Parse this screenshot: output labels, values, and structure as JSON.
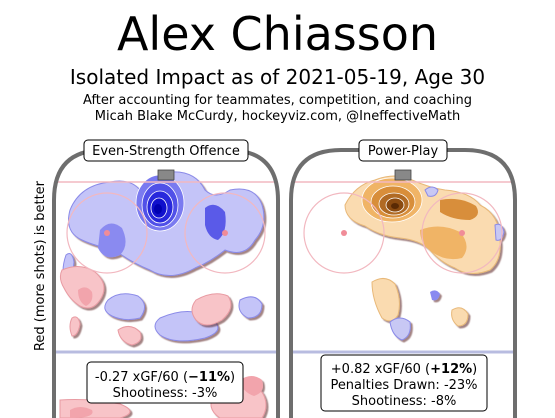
{
  "header": {
    "title": "Alex Chiasson",
    "subtitle": "Isolated Impact as of 2021-05-19, Age 30",
    "note_line1": "After accounting for teammates, competition, and coaching",
    "note_line2": "Micah Blake McCurdy, hockeyviz.com, @IneffectiveMath"
  },
  "chart_data": {
    "type": "heatmap",
    "ylabel": "Red (more shots) is better",
    "colors": {
      "positive_ev": "#f4a0a8",
      "negative_ev": "#8c8cf0",
      "negative_ev_core": "#1010d0",
      "positive_pp": "#f5c98a",
      "positive_pp_core": "#8a4a10",
      "rink_line": "#6e6e6e"
    },
    "panels": [
      {
        "name": "Even-Strength Offence",
        "stat_line1": "-0.27 xGF/60 (",
        "stat_bold1": "−11%",
        "stat_tail1": ")",
        "stat_line2": "Shootiness: -3%"
      },
      {
        "name": "Power-Play",
        "stat_line1": "+0.82 xGF/60 (",
        "stat_bold1": "+12%",
        "stat_tail1": ")",
        "stat_line2": "Penalties Drawn: -23%",
        "stat_line3": "Shootiness: -8%"
      }
    ]
  }
}
